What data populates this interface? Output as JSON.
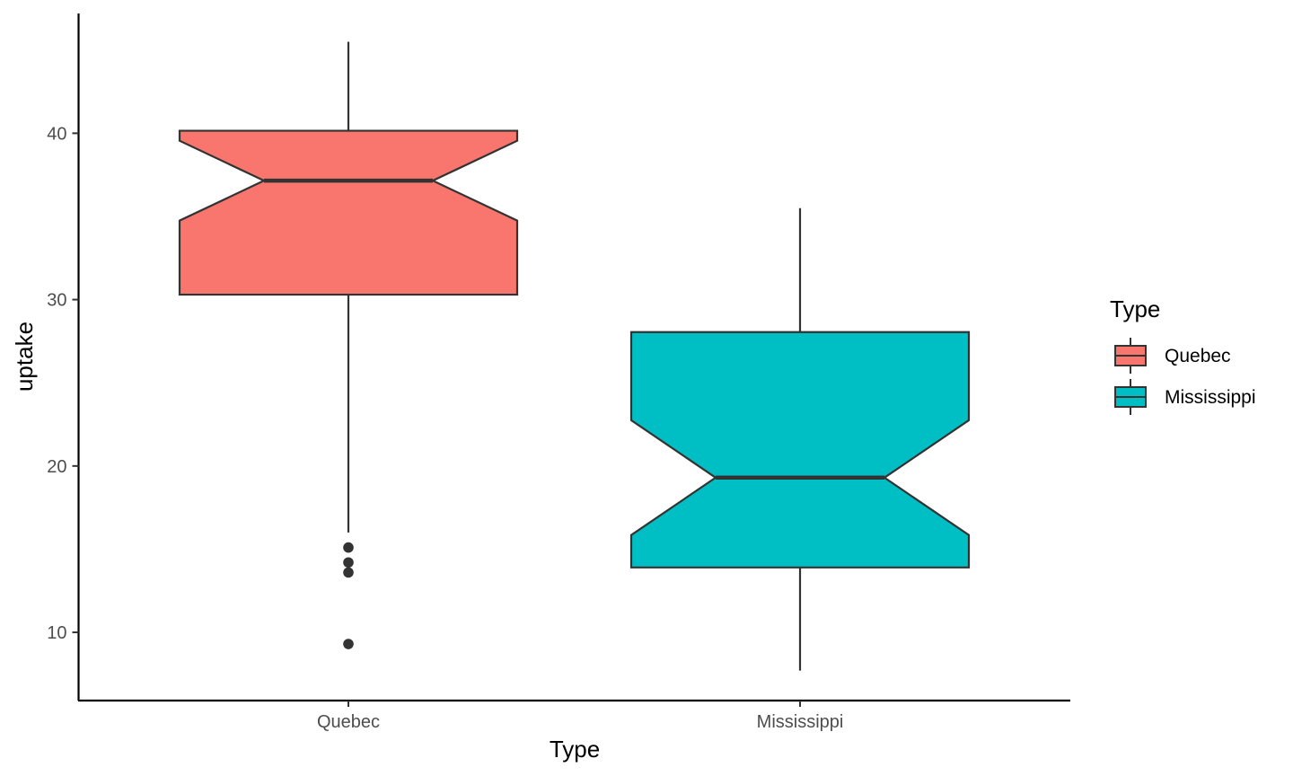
{
  "chart_data": {
    "type": "boxplot",
    "notched": true,
    "title": "",
    "xlabel": "Type",
    "ylabel": "uptake",
    "ylim": [
      5.9,
      47.2
    ],
    "yticks": [
      10,
      20,
      30,
      40
    ],
    "ytick_labels": [
      "10",
      "20",
      "30",
      "40"
    ],
    "categories": [
      "Quebec",
      "Mississippi"
    ],
    "series": [
      {
        "name": "Quebec",
        "color": "#F8766D",
        "lower_whisker": 16.0,
        "q1": 30.3,
        "median": 37.15,
        "q3": 40.15,
        "upper_whisker": 45.5,
        "notch_low": 34.75,
        "notch_high": 39.55,
        "outliers": [
          15.1,
          14.2,
          13.6,
          9.3
        ]
      },
      {
        "name": "Mississippi",
        "color": "#00BFC4",
        "lower_whisker": 7.7,
        "q1": 13.9,
        "median": 19.3,
        "q3": 28.05,
        "upper_whisker": 35.5,
        "notch_low": 15.85,
        "notch_high": 22.75,
        "outliers": []
      }
    ],
    "legend": {
      "title": "Type",
      "position": "right",
      "entries": [
        {
          "label": "Quebec",
          "color": "#F8766D"
        },
        {
          "label": "Mississippi",
          "color": "#00BFC4"
        }
      ]
    },
    "grid": false
  }
}
